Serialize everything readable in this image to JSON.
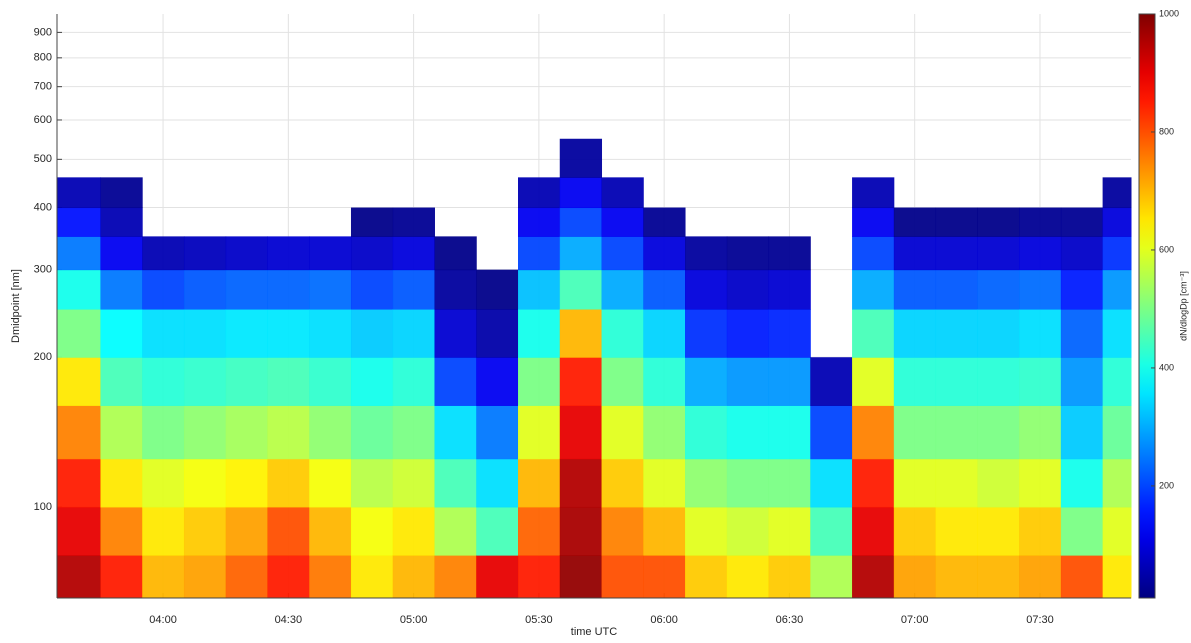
{
  "chart_data": {
    "type": "heatmap",
    "x_label": "time UTC",
    "y_label": "Dmidpoint [nm]",
    "colorbar_label": "dN/dlogDp [cm⁻³]",
    "colormap": "jet",
    "yscale": "log",
    "grid": true,
    "xlim": [
      214.6,
      471.8
    ],
    "ylim": [
      65.6,
      980
    ],
    "zlim": [
      10,
      1000
    ],
    "xticks": [
      {
        "value": 240,
        "label": "04:00"
      },
      {
        "value": 270,
        "label": "04:30"
      },
      {
        "value": 300,
        "label": "05:00"
      },
      {
        "value": 330,
        "label": "05:30"
      },
      {
        "value": 360,
        "label": "06:00"
      },
      {
        "value": 390,
        "label": "06:30"
      },
      {
        "value": 420,
        "label": "07:00"
      },
      {
        "value": 450,
        "label": "07:30"
      }
    ],
    "yticks": [
      100,
      200,
      300,
      400,
      500,
      600,
      700,
      800,
      900
    ],
    "zticks": [
      200,
      400,
      600,
      800,
      1000
    ],
    "x_bins": [
      214.6,
      225,
      235,
      245,
      255,
      265,
      275,
      285,
      295,
      305,
      315,
      325,
      335,
      345,
      355,
      365,
      375,
      385,
      395,
      405,
      415,
      425,
      435,
      445,
      455,
      465,
      471.8
    ],
    "y_bins": [
      65.6,
      80,
      100,
      125,
      160,
      200,
      250,
      300,
      350,
      400,
      460,
      550,
      980
    ],
    "values": [
      [
        950,
        900,
        850,
        750,
        650,
        500,
        400,
        250,
        150,
        60,
        null,
        null
      ],
      [
        850,
        750,
        650,
        550,
        450,
        380,
        250,
        120,
        60,
        30,
        null,
        null
      ],
      [
        700,
        650,
        600,
        500,
        420,
        350,
        200,
        60,
        null,
        null,
        null,
        null
      ],
      [
        720,
        680,
        620,
        520,
        430,
        350,
        220,
        70,
        null,
        null,
        null,
        null
      ],
      [
        780,
        720,
        640,
        540,
        440,
        360,
        230,
        80,
        null,
        null,
        null,
        null
      ],
      [
        850,
        800,
        680,
        560,
        450,
        360,
        230,
        90,
        null,
        null,
        null,
        null
      ],
      [
        760,
        700,
        620,
        520,
        430,
        350,
        240,
        90,
        null,
        null,
        null,
        null
      ],
      [
        650,
        620,
        560,
        480,
        400,
        330,
        200,
        80,
        20,
        null,
        null,
        null
      ],
      [
        700,
        650,
        580,
        500,
        420,
        340,
        220,
        100,
        30,
        null,
        null,
        null
      ],
      [
        750,
        550,
        450,
        350,
        200,
        90,
        40,
        20,
        null,
        null,
        null,
        null
      ],
      [
        900,
        450,
        350,
        250,
        120,
        50,
        20,
        null,
        null,
        null,
        null,
        null
      ],
      [
        850,
        780,
        700,
        600,
        500,
        400,
        320,
        200,
        120,
        60,
        null,
        null
      ],
      [
        980,
        960,
        950,
        900,
        850,
        700,
        450,
        300,
        200,
        120,
        40,
        null
      ],
      [
        800,
        750,
        680,
        600,
        500,
        420,
        300,
        200,
        120,
        60,
        null,
        null
      ],
      [
        800,
        700,
        600,
        520,
        420,
        340,
        220,
        100,
        30,
        null,
        null,
        null
      ],
      [
        680,
        600,
        520,
        420,
        300,
        180,
        100,
        40,
        null,
        null,
        null,
        null
      ],
      [
        650,
        580,
        500,
        400,
        280,
        160,
        80,
        30,
        null,
        null,
        null,
        null
      ],
      [
        680,
        600,
        500,
        400,
        280,
        170,
        90,
        30,
        null,
        null,
        null,
        null
      ],
      [
        550,
        450,
        350,
        200,
        60,
        null,
        null,
        null,
        null,
        null,
        null,
        null
      ],
      [
        950,
        900,
        850,
        750,
        600,
        450,
        300,
        200,
        120,
        60,
        null,
        null
      ],
      [
        720,
        680,
        600,
        500,
        420,
        340,
        220,
        90,
        20,
        null,
        null,
        null
      ],
      [
        700,
        650,
        600,
        500,
        420,
        340,
        220,
        90,
        20,
        null,
        null,
        null
      ],
      [
        700,
        650,
        580,
        500,
        420,
        340,
        230,
        90,
        20,
        null,
        null,
        null
      ],
      [
        720,
        680,
        600,
        520,
        430,
        350,
        240,
        100,
        30,
        null,
        null,
        null
      ],
      [
        800,
        500,
        400,
        330,
        280,
        230,
        160,
        80,
        30,
        null,
        null,
        null
      ],
      [
        650,
        600,
        550,
        480,
        420,
        350,
        280,
        180,
        100,
        40,
        null,
        null
      ]
    ]
  }
}
